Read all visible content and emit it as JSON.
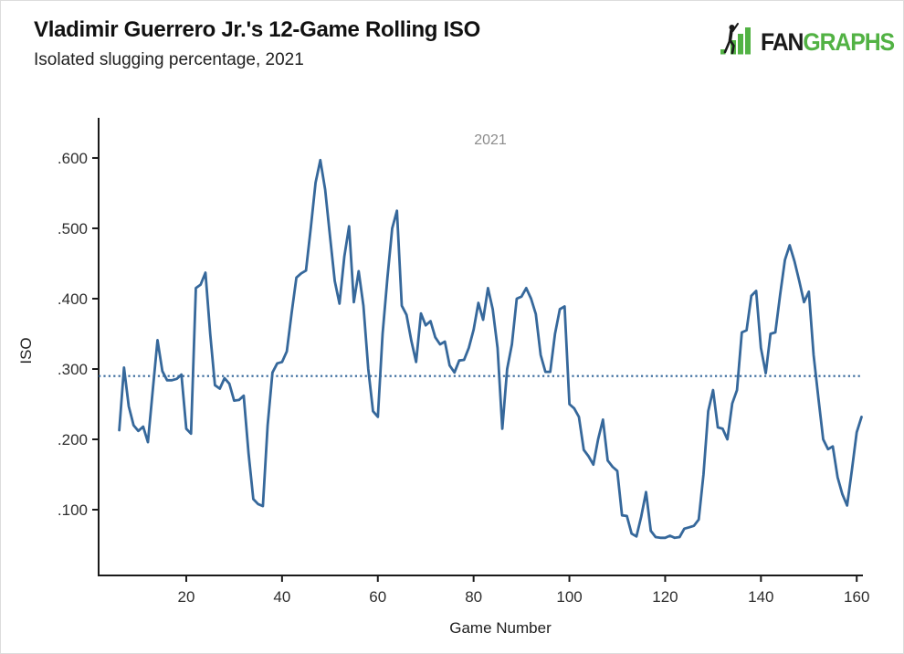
{
  "header": {
    "title": "Vladimir Guerrero Jr.'s 12-Game Rolling ISO",
    "subtitle": "Isolated slugging percentage, 2021"
  },
  "logo": {
    "fan": "FAN",
    "graphs": "GRAPHS",
    "green": "#52B244",
    "black": "#1a1a1a"
  },
  "chart_data": {
    "type": "line",
    "title": "Vladimir Guerrero Jr.'s 12-Game Rolling ISO",
    "subtitle": "Isolated slugging percentage, 2021",
    "xlabel": "Game Number",
    "ylabel": "ISO",
    "legend_position": "top-center",
    "grid": false,
    "xlim": [
      1.7,
      161.1
    ],
    "ylim": [
      0.0065,
      0.6545
    ],
    "x_ticks": [
      20,
      40,
      60,
      80,
      100,
      120,
      140,
      160
    ],
    "y_ticks": [
      {
        "value": 0.1,
        "label": ".100"
      },
      {
        "value": 0.2,
        "label": ".200"
      },
      {
        "value": 0.3,
        "label": ".300"
      },
      {
        "value": 0.4,
        "label": ".400"
      },
      {
        "value": 0.5,
        "label": ".500"
      },
      {
        "value": 0.6,
        "label": ".600"
      }
    ],
    "average_line": {
      "value": 0.29,
      "style": "dotted",
      "color": "#36689B"
    },
    "line_color": "#36689B",
    "axis_color": "#1a1a1a",
    "series": [
      {
        "name": "2021",
        "color": "#36689B",
        "points": [
          [
            6,
            0.213
          ],
          [
            7,
            0.302
          ],
          [
            8,
            0.247
          ],
          [
            9,
            0.22
          ],
          [
            10,
            0.212
          ],
          [
            11,
            0.218
          ],
          [
            12,
            0.196
          ],
          [
            13,
            0.27
          ],
          [
            14,
            0.341
          ],
          [
            15,
            0.297
          ],
          [
            16,
            0.284
          ],
          [
            17,
            0.284
          ],
          [
            18,
            0.286
          ],
          [
            19,
            0.292
          ],
          [
            20,
            0.215
          ],
          [
            21,
            0.208
          ],
          [
            22,
            0.415
          ],
          [
            23,
            0.42
          ],
          [
            24,
            0.437
          ],
          [
            25,
            0.35
          ],
          [
            26,
            0.277
          ],
          [
            27,
            0.272
          ],
          [
            28,
            0.287
          ],
          [
            29,
            0.279
          ],
          [
            30,
            0.255
          ],
          [
            31,
            0.256
          ],
          [
            32,
            0.262
          ],
          [
            33,
            0.18
          ],
          [
            34,
            0.115
          ],
          [
            35,
            0.108
          ],
          [
            36,
            0.105
          ],
          [
            37,
            0.22
          ],
          [
            38,
            0.295
          ],
          [
            39,
            0.308
          ],
          [
            40,
            0.31
          ],
          [
            41,
            0.325
          ],
          [
            42,
            0.38
          ],
          [
            43,
            0.43
          ],
          [
            44,
            0.436
          ],
          [
            45,
            0.44
          ],
          [
            46,
            0.5
          ],
          [
            47,
            0.565
          ],
          [
            48,
            0.597
          ],
          [
            49,
            0.555
          ],
          [
            50,
            0.49
          ],
          [
            51,
            0.425
          ],
          [
            52,
            0.393
          ],
          [
            53,
            0.46
          ],
          [
            54,
            0.503
          ],
          [
            55,
            0.395
          ],
          [
            56,
            0.439
          ],
          [
            57,
            0.39
          ],
          [
            58,
            0.3
          ],
          [
            59,
            0.24
          ],
          [
            60,
            0.232
          ],
          [
            61,
            0.35
          ],
          [
            62,
            0.43
          ],
          [
            63,
            0.5
          ],
          [
            64,
            0.525
          ],
          [
            65,
            0.39
          ],
          [
            66,
            0.377
          ],
          [
            67,
            0.34
          ],
          [
            68,
            0.31
          ],
          [
            69,
            0.379
          ],
          [
            70,
            0.362
          ],
          [
            71,
            0.368
          ],
          [
            72,
            0.345
          ],
          [
            73,
            0.335
          ],
          [
            74,
            0.339
          ],
          [
            75,
            0.305
          ],
          [
            76,
            0.295
          ],
          [
            77,
            0.312
          ],
          [
            78,
            0.313
          ],
          [
            79,
            0.33
          ],
          [
            80,
            0.356
          ],
          [
            81,
            0.394
          ],
          [
            82,
            0.37
          ],
          [
            83,
            0.415
          ],
          [
            84,
            0.385
          ],
          [
            85,
            0.33
          ],
          [
            86,
            0.215
          ],
          [
            87,
            0.3
          ],
          [
            88,
            0.335
          ],
          [
            89,
            0.4
          ],
          [
            90,
            0.403
          ],
          [
            91,
            0.415
          ],
          [
            92,
            0.4
          ],
          [
            93,
            0.378
          ],
          [
            94,
            0.32
          ],
          [
            95,
            0.296
          ],
          [
            96,
            0.296
          ],
          [
            97,
            0.35
          ],
          [
            98,
            0.385
          ],
          [
            99,
            0.389
          ],
          [
            100,
            0.25
          ],
          [
            101,
            0.244
          ],
          [
            102,
            0.232
          ],
          [
            103,
            0.185
          ],
          [
            104,
            0.176
          ],
          [
            105,
            0.164
          ],
          [
            106,
            0.2
          ],
          [
            107,
            0.228
          ],
          [
            108,
            0.17
          ],
          [
            109,
            0.161
          ],
          [
            110,
            0.155
          ],
          [
            111,
            0.092
          ],
          [
            112,
            0.091
          ],
          [
            113,
            0.066
          ],
          [
            114,
            0.062
          ],
          [
            115,
            0.09
          ],
          [
            116,
            0.125
          ],
          [
            117,
            0.07
          ],
          [
            118,
            0.061
          ],
          [
            119,
            0.06
          ],
          [
            120,
            0.06
          ],
          [
            121,
            0.063
          ],
          [
            122,
            0.06
          ],
          [
            123,
            0.061
          ],
          [
            124,
            0.073
          ],
          [
            125,
            0.075
          ],
          [
            126,
            0.077
          ],
          [
            127,
            0.086
          ],
          [
            128,
            0.15
          ],
          [
            129,
            0.24
          ],
          [
            130,
            0.27
          ],
          [
            131,
            0.217
          ],
          [
            132,
            0.215
          ],
          [
            133,
            0.2
          ],
          [
            134,
            0.251
          ],
          [
            135,
            0.27
          ],
          [
            136,
            0.352
          ],
          [
            137,
            0.355
          ],
          [
            138,
            0.404
          ],
          [
            139,
            0.411
          ],
          [
            140,
            0.33
          ],
          [
            141,
            0.294
          ],
          [
            142,
            0.35
          ],
          [
            143,
            0.352
          ],
          [
            144,
            0.405
          ],
          [
            145,
            0.455
          ],
          [
            146,
            0.476
          ],
          [
            147,
            0.453
          ],
          [
            148,
            0.425
          ],
          [
            149,
            0.395
          ],
          [
            150,
            0.41
          ],
          [
            151,
            0.32
          ],
          [
            152,
            0.258
          ],
          [
            153,
            0.2
          ],
          [
            154,
            0.186
          ],
          [
            155,
            0.19
          ],
          [
            156,
            0.146
          ],
          [
            157,
            0.122
          ],
          [
            158,
            0.106
          ],
          [
            159,
            0.157
          ],
          [
            160,
            0.21
          ],
          [
            161,
            0.232
          ]
        ]
      }
    ]
  }
}
